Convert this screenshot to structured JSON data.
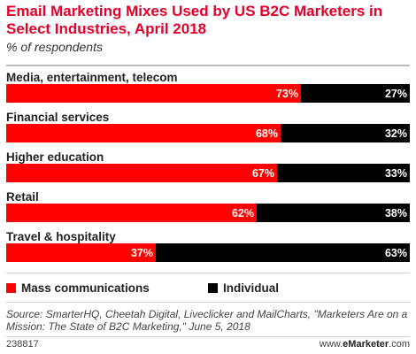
{
  "title": "Email Marketing Mixes Used by US B2C Marketers in Select Industries, April 2018",
  "subtitle": "% of respondents",
  "colors": {
    "mass": "#ff0000",
    "individual": "#000000",
    "title": "#e4002b"
  },
  "chart_data": {
    "type": "bar",
    "stacked": true,
    "orientation": "horizontal",
    "categories": [
      "Media, entertainment, telecom",
      "Financial services",
      "Higher education",
      "Retail",
      "Travel & hospitality"
    ],
    "series": [
      {
        "name": "Mass communications",
        "values": [
          73,
          68,
          67,
          62,
          37
        ],
        "labels": [
          "73%",
          "68%",
          "67%",
          "62%",
          "37%"
        ]
      },
      {
        "name": "Individual",
        "values": [
          27,
          32,
          33,
          38,
          63
        ],
        "labels": [
          "27%",
          "32%",
          "33%",
          "38%",
          "63%"
        ]
      }
    ],
    "xlim": [
      0,
      100
    ],
    "legend_position": "bottom"
  },
  "legend": {
    "mass": "Mass communications",
    "individual": "Individual"
  },
  "source": "Source: SmarterHQ, Cheetah Digital, Liveclicker and MailCharts, \"Marketers Are on a Mission: The State of B2C Marketing,\" June 5, 2018",
  "footer": {
    "id": "238817",
    "brand_prefix": "www.",
    "brand_name": "eMarketer",
    "brand_suffix": ".com"
  }
}
